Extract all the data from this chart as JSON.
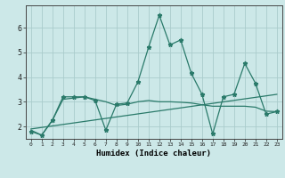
{
  "xlabel": "Humidex (Indice chaleur)",
  "ylabel": "",
  "background_color": "#cce8e8",
  "grid_color": "#aacccc",
  "line_color": "#2a7a6a",
  "xlim": [
    -0.5,
    23.5
  ],
  "ylim": [
    1.5,
    6.9
  ],
  "xticks": [
    0,
    1,
    2,
    3,
    4,
    5,
    6,
    7,
    8,
    9,
    10,
    11,
    12,
    13,
    14,
    15,
    16,
    17,
    18,
    19,
    20,
    21,
    22,
    23
  ],
  "yticks": [
    2,
    3,
    4,
    5,
    6
  ],
  "series1_x": [
    0,
    1,
    2,
    3,
    4,
    5,
    6,
    7,
    8,
    9,
    10,
    11,
    12,
    13,
    14,
    15,
    16,
    17,
    18,
    19,
    20,
    21,
    22,
    23
  ],
  "series1_y": [
    1.8,
    1.65,
    2.25,
    3.2,
    3.2,
    3.2,
    3.05,
    1.85,
    2.9,
    2.95,
    3.8,
    5.2,
    6.5,
    5.3,
    5.5,
    4.15,
    3.3,
    1.7,
    3.2,
    3.3,
    4.55,
    3.75,
    2.5,
    2.6
  ],
  "series2_x": [
    0,
    1,
    2,
    3,
    4,
    5,
    6,
    7,
    8,
    9,
    10,
    11,
    12,
    13,
    14,
    15,
    16,
    17,
    18,
    19,
    20,
    21,
    22,
    23
  ],
  "series2_y": [
    1.85,
    1.65,
    2.25,
    3.1,
    3.15,
    3.2,
    3.1,
    3.0,
    2.85,
    2.9,
    3.0,
    3.05,
    3.0,
    3.0,
    2.98,
    2.95,
    2.88,
    2.82,
    2.82,
    2.82,
    2.82,
    2.78,
    2.62,
    2.6
  ],
  "series3_x": [
    0,
    23
  ],
  "series3_y": [
    1.9,
    3.3
  ]
}
